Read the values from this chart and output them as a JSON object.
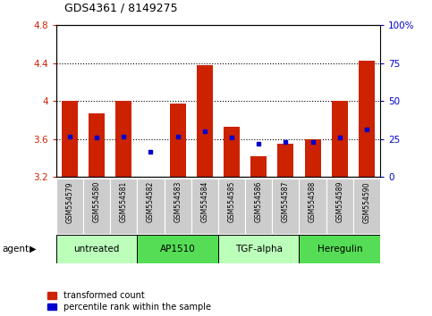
{
  "title": "GDS4361 / 8149275",
  "samples": [
    "GSM554579",
    "GSM554580",
    "GSM554581",
    "GSM554582",
    "GSM554583",
    "GSM554584",
    "GSM554585",
    "GSM554586",
    "GSM554587",
    "GSM554588",
    "GSM554589",
    "GSM554590"
  ],
  "red_values": [
    4.0,
    3.87,
    4.0,
    3.2,
    3.97,
    4.38,
    3.73,
    3.42,
    3.55,
    3.6,
    4.0,
    4.43
  ],
  "blue_values_left": [
    3.63,
    3.62,
    3.63,
    3.47,
    3.63,
    3.68,
    3.62,
    3.55,
    3.57,
    3.57,
    3.62,
    3.7
  ],
  "ylim": [
    3.2,
    4.8
  ],
  "yticks_left": [
    3.2,
    3.6,
    4.0,
    4.4,
    4.8
  ],
  "yticks_right": [
    0,
    25,
    50,
    75,
    100
  ],
  "ytick_labels_right": [
    "0",
    "25",
    "50",
    "75",
    "100%"
  ],
  "ytick_labels_left": [
    "3.2",
    "3.6",
    "4",
    "4.4",
    "4.8"
  ],
  "grid_lines": [
    3.6,
    4.0,
    4.4
  ],
  "bar_bottom": 3.2,
  "bar_color": "#cc2200",
  "blue_color": "#0000cc",
  "agent_groups": [
    {
      "label": "untreated",
      "start": 0,
      "end": 3,
      "color": "#bbffbb"
    },
    {
      "label": "AP1510",
      "start": 3,
      "end": 6,
      "color": "#55dd55"
    },
    {
      "label": "TGF-alpha",
      "start": 6,
      "end": 9,
      "color": "#bbffbb"
    },
    {
      "label": "Heregulin",
      "start": 9,
      "end": 12,
      "color": "#55dd55"
    }
  ],
  "tick_bg_color": "#cccccc",
  "plot_bg_color": "#ffffff",
  "legend_items": [
    "transformed count",
    "percentile rank within the sample"
  ],
  "legend_colors": [
    "#cc2200",
    "#0000cc"
  ]
}
